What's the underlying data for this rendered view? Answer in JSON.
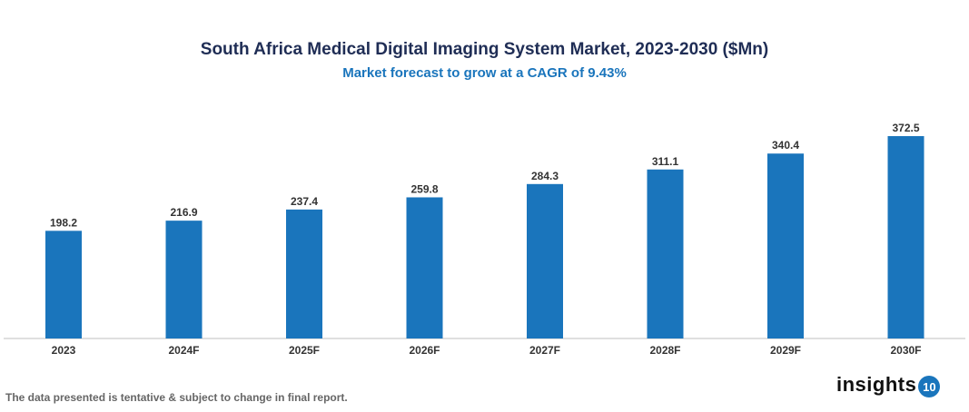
{
  "chart_data": {
    "type": "bar",
    "title": "South Africa Medical Digital Imaging System Market, 2023-2030 ($Mn)",
    "subtitle": "Market forecast to grow at a CAGR of 9.43%",
    "xlabel": "",
    "ylabel": "",
    "categories": [
      "2023",
      "2024F",
      "2025F",
      "2026F",
      "2027F",
      "2028F",
      "2029F",
      "2030F"
    ],
    "values": [
      198.2,
      216.9,
      237.4,
      259.8,
      284.3,
      311.1,
      340.4,
      372.5
    ],
    "ylim": [
      0,
      372.5
    ],
    "grid": false,
    "bar_color": "#1a75bc",
    "data_labels": true
  },
  "footer": {
    "note": "The data presented is tentative & subject to change in final report.",
    "logo_text": "insights",
    "logo_badge": "10"
  }
}
